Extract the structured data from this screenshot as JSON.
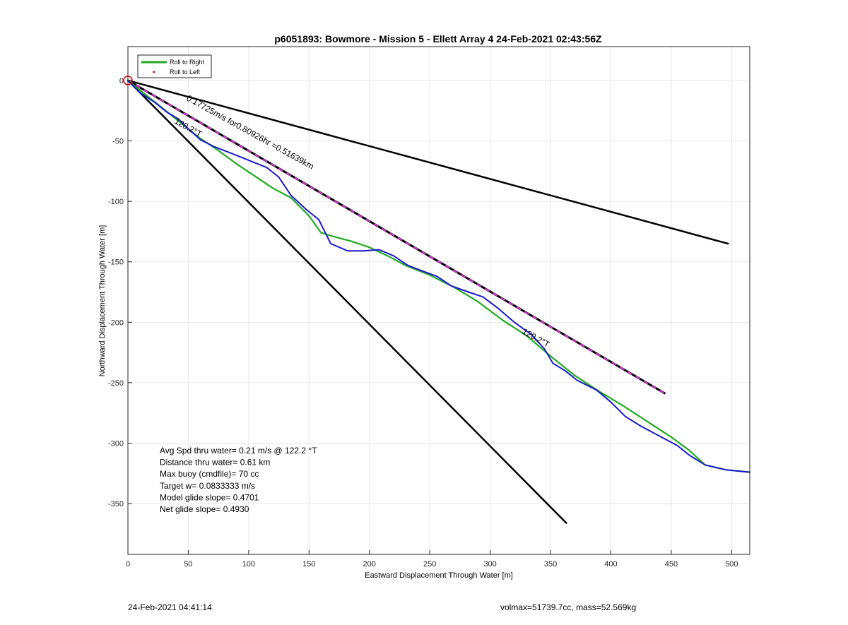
{
  "chart_data": {
    "type": "line",
    "title": "p6051893: Bowmore - Mission 5 - Ellett Array 4 24-Feb-2021 02:43:56Z",
    "xlabel": "Eastward Displacement Through Water [m]",
    "ylabel": "Northward Displacement Through Water [m]",
    "xlim": [
      0,
      515
    ],
    "ylim": [
      -392,
      28
    ],
    "xticks": [
      0,
      50,
      100,
      150,
      200,
      250,
      300,
      350,
      400,
      450,
      500
    ],
    "yticks": [
      0,
      -50,
      -100,
      -150,
      -200,
      -250,
      -300,
      -350
    ],
    "grid": true,
    "legend": {
      "placement": "top-left",
      "entries": [
        {
          "label": "Roll to Right",
          "color": "#22aa22",
          "marker": "line"
        },
        {
          "label": "Roll to Left",
          "color": "#ee0000",
          "marker": "dot"
        }
      ]
    },
    "series": [
      {
        "role": "roll-right",
        "color": "#22aa22",
        "x": [
          0,
          10,
          20,
          30,
          45,
          60,
          75,
          90,
          105,
          120,
          135,
          150,
          160,
          170,
          185,
          200,
          215,
          230,
          250,
          270,
          290,
          310,
          330,
          350,
          370,
          390,
          410,
          430,
          450,
          465,
          478,
          495,
          515
        ],
        "y": [
          0,
          -8,
          -16,
          -24,
          -36,
          -48,
          -58,
          -69,
          -79,
          -89,
          -97,
          -112,
          -126,
          -129,
          -133,
          -138,
          -145,
          -153,
          -161,
          -171,
          -183,
          -198,
          -211,
          -228,
          -244,
          -257,
          -269,
          -282,
          -295,
          -306,
          -318,
          -322,
          -324
        ]
      },
      {
        "role": "track",
        "color": "#1a1acc",
        "x": [
          0,
          10,
          22,
          32,
          42,
          50,
          60,
          72,
          85,
          100,
          115,
          125,
          135,
          148,
          158,
          168,
          182,
          195,
          208,
          220,
          232,
          245,
          256,
          268,
          282,
          294,
          306,
          320,
          334,
          345,
          352,
          362,
          372,
          388,
          400,
          412,
          425,
          440,
          455,
          465,
          478,
          495,
          515
        ],
        "y": [
          0,
          -10,
          -18,
          -26,
          -32,
          -40,
          -49,
          -55,
          -60,
          -66,
          -72,
          -80,
          -95,
          -107,
          -115,
          -135,
          -141,
          -141,
          -140,
          -145,
          -153,
          -158,
          -162,
          -170,
          -175,
          -179,
          -188,
          -200,
          -210,
          -222,
          -234,
          -240,
          -248,
          -256,
          -266,
          -278,
          -286,
          -294,
          -302,
          -310,
          -318,
          -322,
          -324
        ]
      },
      {
        "role": "fit-magenta",
        "color": "#dd33dd",
        "x": [
          0,
          445
        ],
        "y": [
          0,
          -259
        ]
      },
      {
        "role": "bound-upper",
        "color": "#000000",
        "x": [
          0,
          497
        ],
        "y": [
          0,
          -135
        ]
      },
      {
        "role": "bound-lower",
        "color": "#000000",
        "x": [
          0,
          363
        ],
        "y": [
          0,
          -366
        ]
      },
      {
        "role": "start-marker",
        "color": "#ee0000",
        "x": [
          0
        ],
        "y": [
          0
        ]
      }
    ],
    "annotations": [
      {
        "text": "0.17725m/s for0.80926hr =0.51639km",
        "x": 48,
        "y": -16,
        "angle": 29
      },
      {
        "text": "120.2°T",
        "x": 38,
        "y": -35,
        "angle": 29
      },
      {
        "text": "120.2°T",
        "x": 326,
        "y": -209,
        "angle": 29
      }
    ],
    "stats_lines": [
      "Avg Spd thru water=  0.21 m/s @ 122.2 °T",
      "Distance thru water=  0.61 km",
      "Max buoy (cmdfile)= 70 cc",
      "Target w= 0.0833333 m/s",
      "Model glide slope= 0.4701",
      "Net glide slope= 0.4930"
    ]
  },
  "footer": {
    "timestamp": "24-Feb-2021 04:41:14",
    "vehicle": "volmax=51739.7cc, mass=52.569kg"
  }
}
